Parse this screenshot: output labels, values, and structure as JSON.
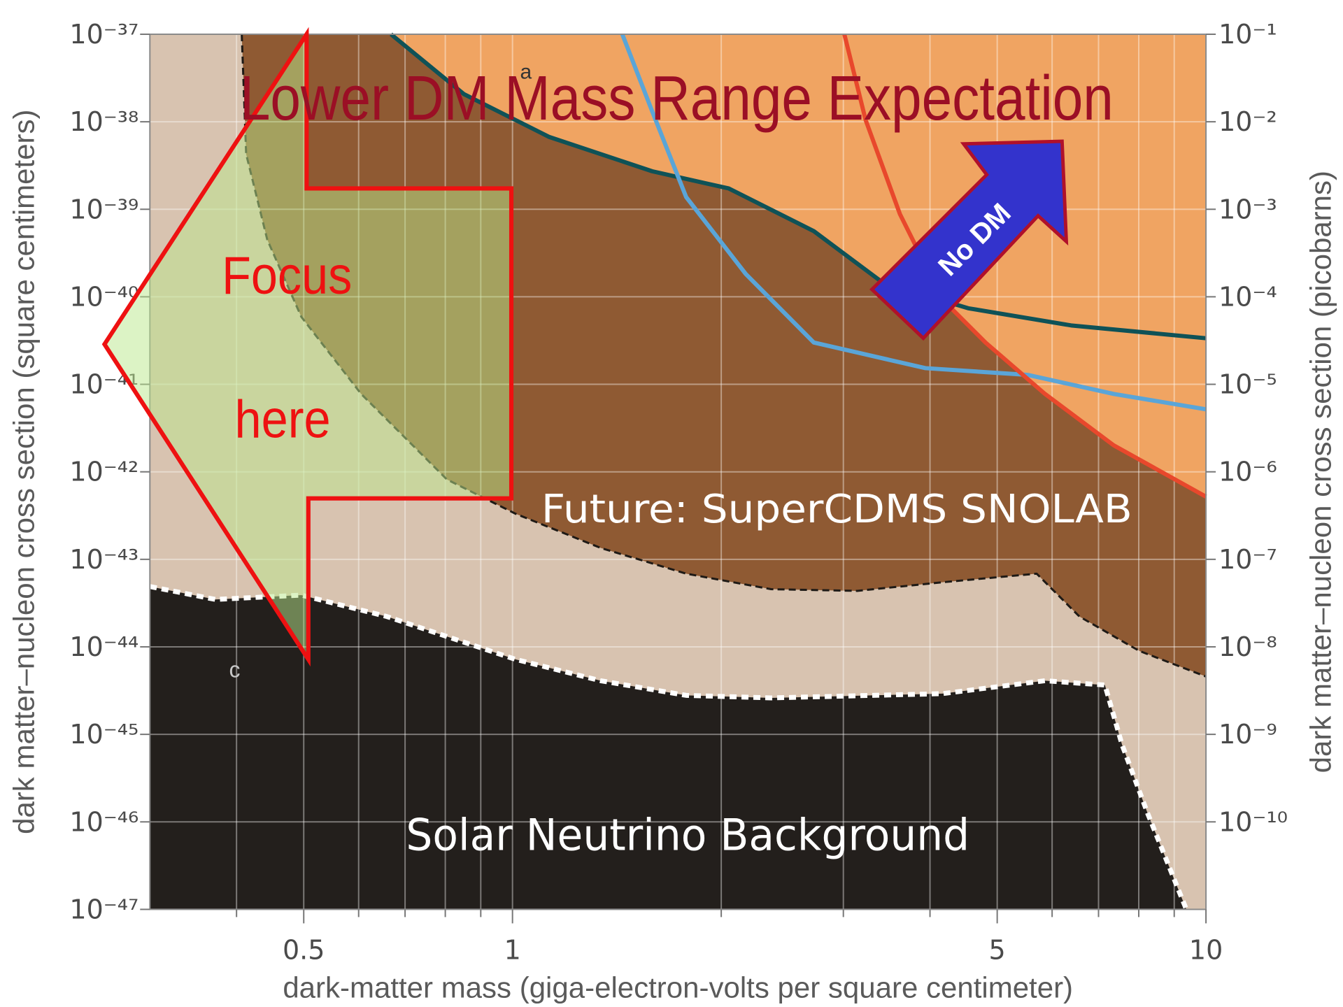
{
  "chart_data": {
    "type": "line",
    "title": "Lower DM Mass Range Expectation",
    "xlabel": "dark-matter mass (giga-electron-volts per square centimeter)",
    "ylabel": "dark matter–nucleon cross section (square centimeters)",
    "y2label": "dark matter–nucleon cross section (picobarns)",
    "annotations": [
      "Focus",
      "here",
      "No DM",
      "Future: SuperCDMS SNOLAB",
      "Solar Neutrino Background",
      "a",
      "c"
    ],
    "xscale": "log",
    "yscale": "log",
    "grid": true,
    "plot_background": "#d8c3b0",
    "xlim": [
      0.3,
      10
    ],
    "xticks": [
      0.5,
      1,
      5,
      10
    ],
    "xminorticks": [
      0.4,
      0.6,
      0.7,
      0.8,
      0.9,
      2,
      3,
      4,
      6,
      7,
      8,
      9
    ],
    "ylim": [
      1e-47,
      1e-37
    ],
    "yticks": [
      {
        "value": 1e-37,
        "label": "10⁻³⁷"
      },
      {
        "value": 1e-38,
        "label": "10⁻³⁸"
      },
      {
        "value": 1e-39,
        "label": "10⁻³⁹"
      },
      {
        "value": 1e-40,
        "label": "10⁻⁴⁰"
      },
      {
        "value": 1e-41,
        "label": "10⁻⁴¹"
      },
      {
        "value": 1e-42,
        "label": "10⁻⁴²"
      },
      {
        "value": 1e-43,
        "label": "10⁻⁴³"
      },
      {
        "value": 1e-44,
        "label": "10⁻⁴⁴"
      },
      {
        "value": 1e-45,
        "label": "10⁻⁴⁵"
      },
      {
        "value": 1e-46,
        "label": "10⁻⁴⁶"
      },
      {
        "value": 1e-47,
        "label": "10⁻⁴⁷"
      }
    ],
    "y2lim": [
      1e-11,
      0.1
    ],
    "y2ticks": [
      {
        "value": 0.1,
        "label": "10⁻¹"
      },
      {
        "value": 0.01,
        "label": "10⁻²"
      },
      {
        "value": 0.001,
        "label": "10⁻³"
      },
      {
        "value": 0.0001,
        "label": "10⁻⁴"
      },
      {
        "value": 1e-05,
        "label": "10⁻⁵"
      },
      {
        "value": 1e-06,
        "label": "10⁻⁶"
      },
      {
        "value": 1e-07,
        "label": "10⁻⁷"
      },
      {
        "value": 1e-08,
        "label": "10⁻⁸"
      },
      {
        "value": 1e-09,
        "label": "10⁻⁹"
      },
      {
        "value": 1e-10,
        "label": "10⁻¹⁰"
      }
    ],
    "series": [
      {
        "color": "#1e1a16",
        "fill": "#8f5a33",
        "fill_to": "top",
        "line_style": "dashed",
        "x": [
          0.407,
          0.413,
          0.443,
          0.496,
          0.605,
          0.804,
          1.01,
          1.34,
          1.78,
          2.36,
          3.14,
          4.17,
          5.7,
          6.57,
          8.01,
          10
        ],
        "values": [
          1e-37,
          4.27e-39,
          4.49e-40,
          5.9e-41,
          7.76e-42,
          8.2e-43,
          3.32e-43,
          1.35e-43,
          6.86e-44,
          4.56e-44,
          4.36e-44,
          5.47e-44,
          6.86e-44,
          2.22e-44,
          9e-45,
          4.58e-45
        ]
      },
      {
        "color": "#f0a462",
        "fill": "#f0a462",
        "fill_to": "top",
        "line_style": "solid",
        "x": [
          0.668,
          0.851,
          1.13,
          1.59,
          2.05,
          2.72,
          3.42,
          4.17,
          4.81,
          5.86,
          7.36,
          10
        ],
        "values": [
          1e-37,
          2.07e-38,
          6.7e-39,
          2.72e-39,
          1.73e-39,
          5.62e-40,
          1.45e-40,
          9.3e-41,
          3e-41,
          7.76e-42,
          2.01e-42,
          5.2e-43
        ]
      },
      {
        "color": "#ffffff",
        "fill": "#231f1c",
        "fill_to": "bottom",
        "line_style": "dashed",
        "x": [
          0.3,
          0.373,
          0.496,
          0.659,
          1.01,
          1.34,
          1.78,
          2.36,
          4.17,
          5.86,
          7.15,
          7.57,
          8.24,
          9.37
        ],
        "values": [
          4.89e-44,
          3.48e-44,
          3.9e-44,
          2.22e-44,
          7.2e-45,
          4.1e-45,
          2.79e-45,
          2.61e-45,
          2.92e-45,
          4.1e-45,
          3.66e-45,
          7.57e-46,
          1.25e-46,
          1e-47
        ]
      },
      {
        "color": "#0f5257",
        "line_style": "solid",
        "x": [
          0.668,
          0.851,
          1.13,
          1.59,
          2.05,
          2.72,
          3.42,
          4.54,
          6.39,
          10
        ],
        "values": [
          1e-37,
          2.07e-38,
          6.7e-39,
          2.72e-39,
          1.73e-39,
          5.62e-40,
          1.45e-40,
          7.4e-41,
          4.71e-41,
          3.36e-41
        ]
      },
      {
        "color": "#5aa5d8",
        "line_style": "solid",
        "x": [
          1.44,
          1.59,
          1.78,
          2.17,
          2.72,
          3.94,
          5.54,
          7.36,
          10
        ],
        "values": [
          1e-37,
          1.32e-38,
          1.38e-39,
          1.82e-40,
          3e-41,
          1.53e-41,
          1.28e-41,
          7.76e-42,
          5.18e-42
        ]
      },
      {
        "color": "#e8482c",
        "line_style": "solid",
        "x": [
          3.01,
          3.23,
          3.62,
          4.17,
          4.81,
          5.86,
          7.36,
          10
        ],
        "values": [
          1e-37,
          1.05e-38,
          8.8e-40,
          9.3e-41,
          3e-41,
          7.76e-42,
          2.01e-42,
          5.2e-43
        ]
      }
    ]
  }
}
